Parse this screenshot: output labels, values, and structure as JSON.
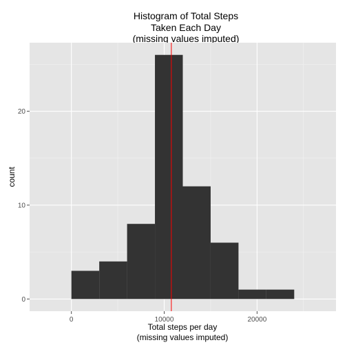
{
  "colors": {
    "panel_bg": "#e5e5e5",
    "grid_major": "#ffffff",
    "grid_minor": "#f2f2f2",
    "bar_fill": "#333333",
    "mean_line": "#ff0000",
    "tick_text": "#4d4d4d"
  },
  "chart_data": {
    "type": "bar",
    "title_lines": [
      "Histogram of Total Steps",
      "Taken Each Day",
      "(missing values imputed)"
    ],
    "xlabel_lines": [
      "Total steps per day",
      "(missing values imputed)"
    ],
    "ylabel": "count",
    "bin_width": 3000,
    "bins": [
      {
        "x0": 0,
        "x1": 3000,
        "count": 3
      },
      {
        "x0": 3000,
        "x1": 6000,
        "count": 4
      },
      {
        "x0": 6000,
        "x1": 9000,
        "count": 8
      },
      {
        "x0": 9000,
        "x1": 12000,
        "count": 26
      },
      {
        "x0": 12000,
        "x1": 15000,
        "count": 12
      },
      {
        "x0": 15000,
        "x1": 18000,
        "count": 6
      },
      {
        "x0": 18000,
        "x1": 21000,
        "count": 1
      },
      {
        "x0": 21000,
        "x1": 24000,
        "count": 1
      }
    ],
    "xlim": [
      -4500,
      28500
    ],
    "ylim": [
      -1.3,
      27.3
    ],
    "x_ticks": [
      0,
      10000,
      20000
    ],
    "x_tick_labels": [
      "0",
      "10000",
      "20000"
    ],
    "x_minor_ticks": [
      -5000,
      5000,
      15000,
      25000
    ],
    "y_ticks": [
      0,
      10,
      20
    ],
    "y_tick_labels": [
      "0",
      "10",
      "20"
    ],
    "y_minor_ticks": [
      5,
      15,
      25
    ],
    "mean_line_x": 10766,
    "grid": true,
    "legend": "none"
  }
}
